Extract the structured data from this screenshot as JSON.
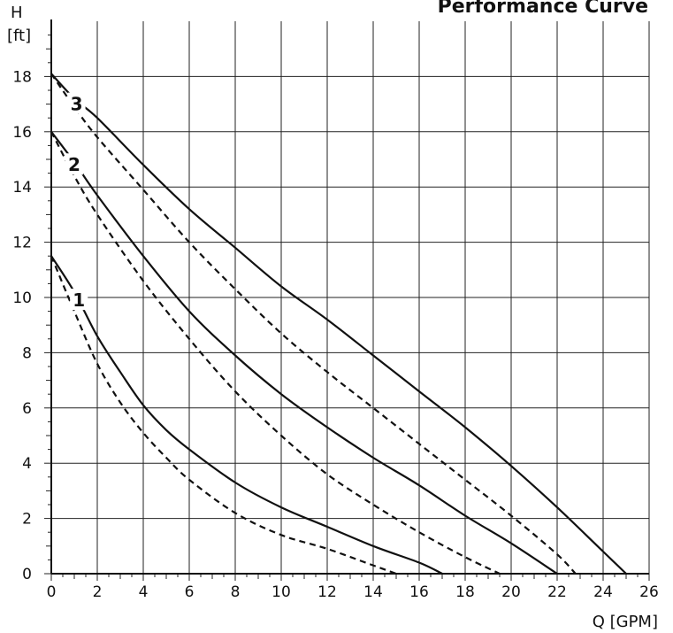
{
  "chart_data": {
    "type": "line",
    "title": "Performance Curve",
    "xlabel": "Q [GPM]",
    "ylabel_top": "H",
    "ylabel_unit": "[ft]",
    "xlim": [
      0,
      26
    ],
    "ylim": [
      0,
      20
    ],
    "xticks": [
      0,
      2,
      4,
      6,
      8,
      10,
      12,
      14,
      16,
      18,
      20,
      22,
      24,
      26
    ],
    "yticks": [
      0,
      2,
      4,
      6,
      8,
      10,
      12,
      14,
      16,
      18
    ],
    "grid": true,
    "series": [
      {
        "name": "1",
        "style": "solid",
        "x": [
          0,
          1,
          2,
          3,
          4,
          5,
          6,
          8,
          10,
          12,
          14,
          16,
          17
        ],
        "y": [
          11.5,
          10.2,
          8.6,
          7.3,
          6.1,
          5.2,
          4.5,
          3.3,
          2.4,
          1.7,
          1.0,
          0.4,
          0.0
        ]
      },
      {
        "name": "1",
        "style": "dashed",
        "x": [
          0,
          1,
          2,
          3,
          4,
          5,
          6,
          8,
          10,
          12,
          14,
          15
        ],
        "y": [
          11.5,
          9.5,
          7.6,
          6.2,
          5.1,
          4.2,
          3.4,
          2.2,
          1.4,
          0.9,
          0.3,
          0.0
        ]
      },
      {
        "name": "2",
        "style": "solid",
        "x": [
          0,
          1,
          2,
          4,
          6,
          8,
          10,
          12,
          14,
          16,
          18,
          20,
          22
        ],
        "y": [
          16.0,
          14.9,
          13.7,
          11.5,
          9.5,
          7.9,
          6.5,
          5.3,
          4.2,
          3.2,
          2.1,
          1.1,
          0.0
        ]
      },
      {
        "name": "2",
        "style": "dashed",
        "x": [
          0,
          1,
          2,
          4,
          6,
          8,
          10,
          12,
          14,
          16,
          18,
          19.5
        ],
        "y": [
          16.0,
          14.4,
          13.0,
          10.6,
          8.5,
          6.6,
          5.0,
          3.6,
          2.5,
          1.5,
          0.6,
          0.0
        ]
      },
      {
        "name": "3",
        "style": "solid",
        "x": [
          0,
          1,
          2,
          4,
          6,
          8,
          10,
          12,
          14,
          16,
          18,
          20,
          22,
          24,
          25
        ],
        "y": [
          18.1,
          17.2,
          16.5,
          14.8,
          13.2,
          11.8,
          10.4,
          9.2,
          7.9,
          6.6,
          5.3,
          3.9,
          2.4,
          0.8,
          0.0
        ]
      },
      {
        "name": "3",
        "style": "dashed",
        "x": [
          0,
          1,
          2,
          4,
          6,
          8,
          10,
          12,
          14,
          16,
          18,
          20,
          22,
          22.8
        ],
        "y": [
          18.1,
          16.9,
          15.8,
          13.9,
          12.0,
          10.3,
          8.7,
          7.3,
          6.0,
          4.7,
          3.4,
          2.1,
          0.7,
          0.0
        ]
      }
    ],
    "curve_labels": [
      {
        "text": "1",
        "x": 1.2,
        "y": 9.9
      },
      {
        "text": "2",
        "x": 1.0,
        "y": 14.8
      },
      {
        "text": "3",
        "x": 1.1,
        "y": 17.0
      }
    ]
  }
}
